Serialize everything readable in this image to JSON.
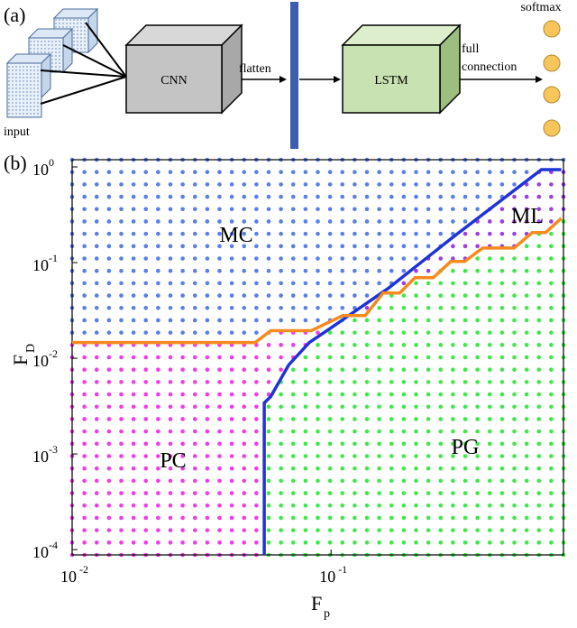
{
  "panel_a": {
    "label": "(a)",
    "input": "input",
    "cnn": "CNN",
    "flatten": "flatten",
    "lstm": "LSTM",
    "full_connection": [
      "full",
      "connection"
    ],
    "softmax": "softmax"
  },
  "chart_data": {
    "type": "line",
    "panel_label": "(b)",
    "xlabel": "F",
    "xlabel_sub": "p",
    "ylabel": "F",
    "ylabel_sub": "D",
    "xscale": "log",
    "yscale": "log",
    "xlim": [
      0.01,
      0.79
    ],
    "ylim": [
      8.8e-05,
      1.19
    ],
    "xticks": [
      {
        "value": 0.01,
        "label": "10",
        "exp": "-2"
      },
      {
        "value": 0.1,
        "label": "10",
        "exp": "-1"
      }
    ],
    "yticks": [
      {
        "value": 1,
        "label": "10",
        "exp": "0"
      },
      {
        "value": 0.1,
        "label": "10",
        "exp": "-1"
      },
      {
        "value": 0.01,
        "label": "10",
        "exp": "-2"
      },
      {
        "value": 0.001,
        "label": "10",
        "exp": "-3"
      },
      {
        "value": 0.0001,
        "label": "10",
        "exp": "-4"
      }
    ],
    "series": [
      {
        "color": "#1f33d6",
        "x": [
          0.0552,
          0.0552,
          0.0585,
          0.0686,
          0.0824,
          0.0984,
          0.166,
          0.29,
          0.649,
          0.775
        ],
        "values": [
          8.8e-05,
          0.00342,
          0.00398,
          0.0085,
          0.0146,
          0.0202,
          0.0537,
          0.177,
          0.937,
          0.937
        ]
      },
      {
        "color": "#f58a1f",
        "x": [
          0.01,
          0.0509,
          0.0585,
          0.0838,
          0.111,
          0.1355,
          0.159,
          0.184,
          0.211,
          0.248,
          0.29,
          0.328,
          0.385,
          0.509,
          0.598,
          0.674,
          0.775
        ],
        "values": [
          0.0146,
          0.0146,
          0.0194,
          0.0194,
          0.028,
          0.028,
          0.0481,
          0.0481,
          0.0695,
          0.0695,
          0.1028,
          0.1028,
          0.142,
          0.142,
          0.206,
          0.206,
          0.291
        ]
      }
    ],
    "regions": [
      {
        "label": "MC",
        "phase_color": "#5b7ee6"
      },
      {
        "label": "ML",
        "phase_color": "#9a3ee8"
      },
      {
        "label": "PC",
        "phase_color": "#f03ce8"
      },
      {
        "label": "PG",
        "phase_color": "#3fe84a"
      }
    ]
  }
}
